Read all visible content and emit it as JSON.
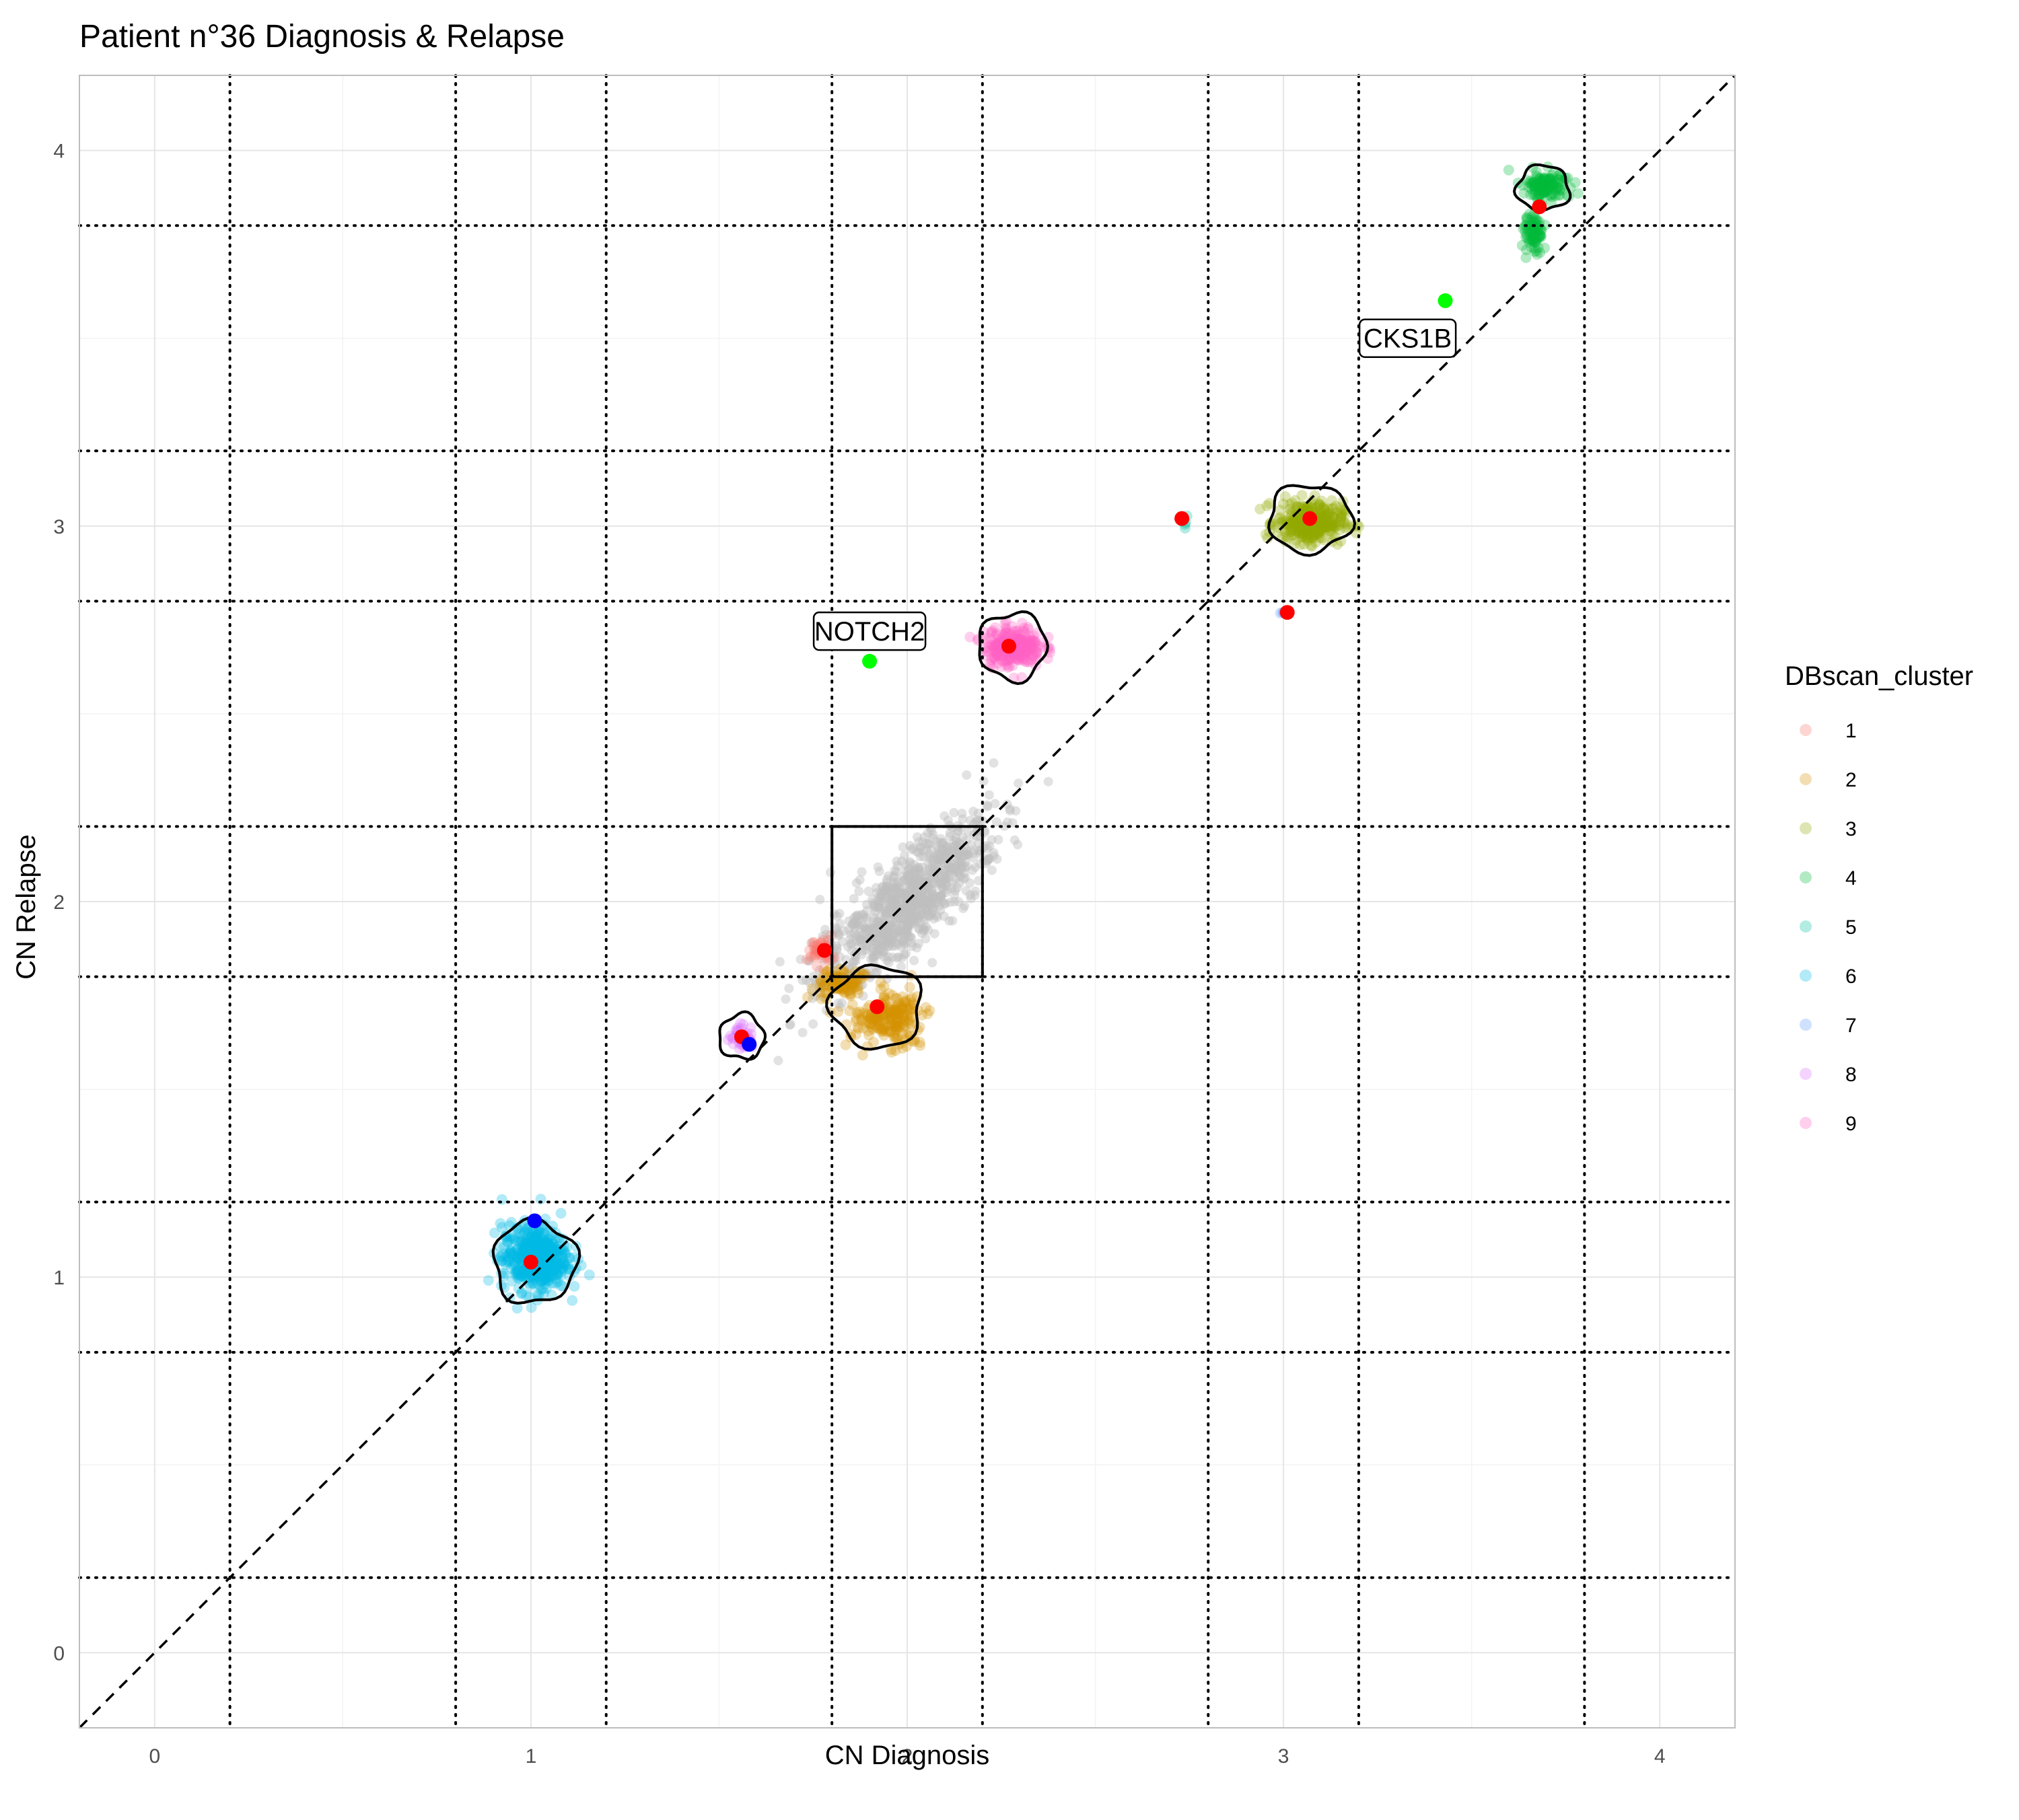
{
  "chart_data": {
    "type": "scatter",
    "title": "Patient n°36 Diagnosis & Relapse",
    "xlabel": "CN Diagnosis",
    "ylabel": "CN Relapse",
    "xlim": [
      -0.2,
      4.2
    ],
    "ylim": [
      -0.2,
      4.2
    ],
    "x_ticks": [
      0,
      1,
      2,
      3,
      4
    ],
    "y_ticks": [
      0,
      1,
      2,
      3,
      4
    ],
    "grid": true,
    "legend_placement": "right",
    "legend_title": "DBscan_cluster",
    "clusters": [
      {
        "name": "1",
        "color": "#F8766D",
        "center": [
          1.77,
          1.87
        ],
        "spread": [
          0.03,
          0.035
        ],
        "n": 40
      },
      {
        "name": "2",
        "color": "#D39200",
        "center": [
          1.93,
          1.72
        ],
        "spread": [
          0.085,
          0.05
        ],
        "n": 300
      },
      {
        "name": "3",
        "color": "#93AA00",
        "center": [
          3.07,
          3.01
        ],
        "spread": [
          0.08,
          0.05
        ],
        "n": 320
      },
      {
        "name": "4",
        "color": "#00BA38",
        "center": [
          3.68,
          3.84
        ],
        "spread": [
          0.04,
          0.09
        ],
        "n": 200
      },
      {
        "name": "5",
        "color": "#00C19F",
        "center": [
          2.74,
          3.01
        ],
        "spread": [
          0.006,
          0.02
        ],
        "n": 4
      },
      {
        "name": "6",
        "color": "#00B9E3",
        "center": [
          1.01,
          1.05
        ],
        "spread": [
          0.08,
          0.08
        ],
        "n": 480
      },
      {
        "name": "7",
        "color": "#619CFF",
        "center": [
          3.0,
          2.77
        ],
        "spread": [
          0.01,
          0.007
        ],
        "n": 6
      },
      {
        "name": "8",
        "color": "#DB72FB",
        "center": [
          1.56,
          1.64
        ],
        "spread": [
          0.03,
          0.03
        ],
        "n": 40
      },
      {
        "name": "9",
        "color": "#FF61C3",
        "center": [
          2.28,
          2.68
        ],
        "spread": [
          0.07,
          0.05
        ],
        "n": 240
      }
    ],
    "background_points": {
      "color": "#BEBEBE",
      "center": [
        2.0,
        2.0
      ],
      "n": 900
    },
    "cluster_centroids": [
      {
        "x": 1.0,
        "y": 1.04
      },
      {
        "x": 1.78,
        "y": 1.87
      },
      {
        "x": 1.92,
        "y": 1.72
      },
      {
        "x": 1.56,
        "y": 1.64
      },
      {
        "x": 2.27,
        "y": 2.68
      },
      {
        "x": 2.73,
        "y": 3.02
      },
      {
        "x": 3.01,
        "y": 2.77
      },
      {
        "x": 3.07,
        "y": 3.02
      },
      {
        "x": 3.68,
        "y": 3.85
      }
    ],
    "blue_points": [
      {
        "x": 1.01,
        "y": 1.15
      },
      {
        "x": 1.58,
        "y": 1.62
      }
    ],
    "labeled_genes": [
      {
        "gene": "NOTCH2",
        "x": 1.9,
        "y": 2.64,
        "label_at": [
          1.9,
          2.72
        ]
      },
      {
        "gene": "CKS1B",
        "x": 3.43,
        "y": 3.6,
        "label_at": [
          3.33,
          3.5
        ]
      }
    ],
    "dotted_x_lines": [
      0.2,
      0.8,
      1.2,
      1.8,
      2.2,
      2.8,
      3.2,
      3.8
    ],
    "dotted_y_lines": [
      0.2,
      0.8,
      1.2,
      1.8,
      2.2,
      2.8,
      3.2,
      3.8
    ],
    "reference_box": {
      "x": [
        1.8,
        2.2
      ],
      "y": [
        1.8,
        2.2
      ]
    },
    "diagonal": "y = x",
    "outlines": [
      {
        "center": [
          1.01,
          1.04
        ],
        "radius": [
          0.11,
          0.11
        ]
      },
      {
        "center": [
          1.56,
          1.64
        ],
        "radius": [
          0.06,
          0.06
        ]
      },
      {
        "center": [
          2.28,
          2.68
        ],
        "radius": [
          0.09,
          0.09
        ]
      },
      {
        "center": [
          3.07,
          3.02
        ],
        "radius": [
          0.11,
          0.09
        ]
      },
      {
        "center": [
          3.69,
          3.9
        ],
        "radius": [
          0.07,
          0.06
        ]
      },
      {
        "center": [
          1.92,
          1.72
        ],
        "radius": [
          0.12,
          0.11
        ]
      }
    ]
  },
  "colors": {
    "highlight_point": "#FF0000",
    "centroid_alt": "#0000FF",
    "gene_point": "#00FF00",
    "grid_major": "#E5E5E5",
    "grid_minor": "#F3F3F3"
  }
}
